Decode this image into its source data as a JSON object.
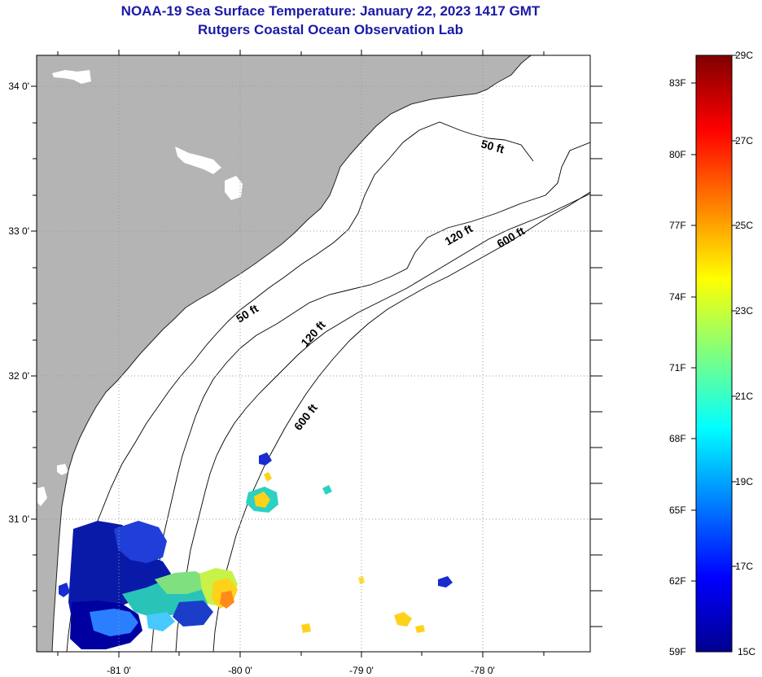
{
  "header": {
    "title": "NOAA-19 Sea Surface Temperature:  January 22, 2023 1417 GMT",
    "subtitle": "Rutgers Coastal Ocean Observation Lab"
  },
  "map": {
    "lon_labels": [
      "-81 0'",
      "-80 0'",
      "-79 0'",
      "-78 0'"
    ],
    "lat_labels": [
      "34 0'",
      "33 0'",
      "32 0'",
      "31 0'"
    ],
    "contour_labels": {
      "c50a": "50 ft",
      "c50b": "50 ft",
      "c120a": "120 ft",
      "c120b": "120 ft",
      "c600a": "600 ft",
      "c600b": "600 ft"
    },
    "colors": {
      "land": "#b4b4b4",
      "ocean": "#ffffff",
      "contour": "#000000",
      "grid": "#9a9a9a"
    }
  },
  "colorbar": {
    "f_labels": [
      "83F",
      "80F",
      "77F",
      "74F",
      "71F",
      "68F",
      "65F",
      "62F",
      "59F"
    ],
    "c_labels": [
      "29C",
      "27C",
      "25C",
      "23C",
      "21C",
      "19C",
      "17C",
      "15C"
    ],
    "f_range": [
      59,
      84.2
    ],
    "c_range": [
      15,
      29
    ],
    "colormap": "jet"
  }
}
